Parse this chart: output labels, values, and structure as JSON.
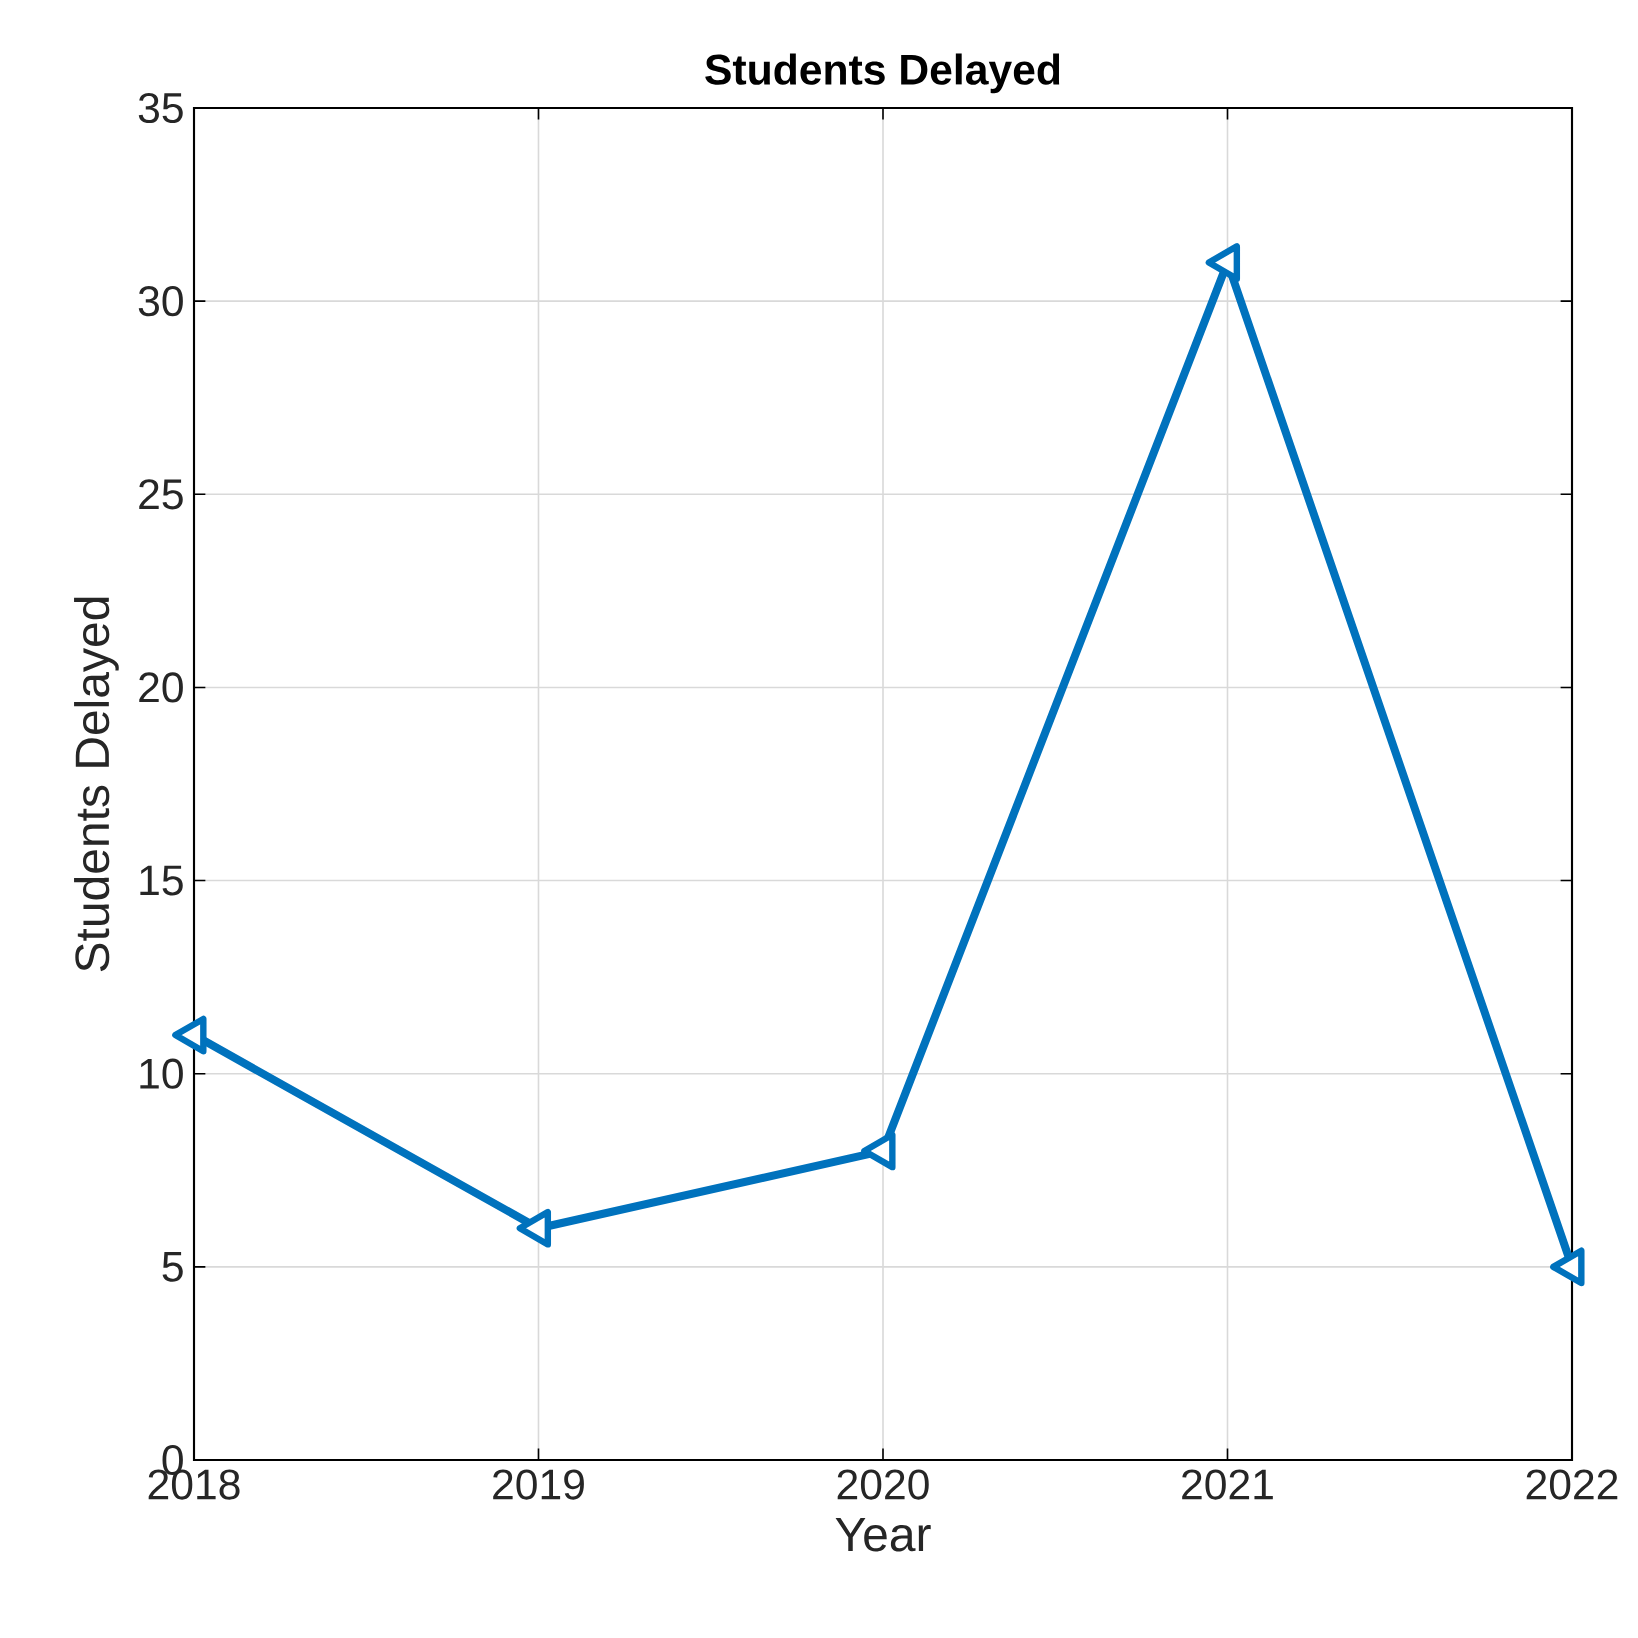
{
  "chart_data": {
    "type": "line",
    "title": "Students Delayed",
    "xlabel": "Year",
    "ylabel": "Students Delayed",
    "x": [
      2018,
      2019,
      2020,
      2021,
      2022
    ],
    "series": [
      {
        "color": "#0072bd",
        "values": [
          11,
          6,
          8,
          31,
          5
        ]
      }
    ],
    "xlim": [
      2018,
      2022
    ],
    "xticks": [
      2018,
      2019,
      2020,
      2021,
      2022
    ],
    "ylim": [
      0,
      35
    ],
    "yticks": [
      0,
      5,
      10,
      15,
      20,
      25,
      30,
      35
    ],
    "grid": true,
    "marker": "triangle",
    "line_style": "solid"
  }
}
